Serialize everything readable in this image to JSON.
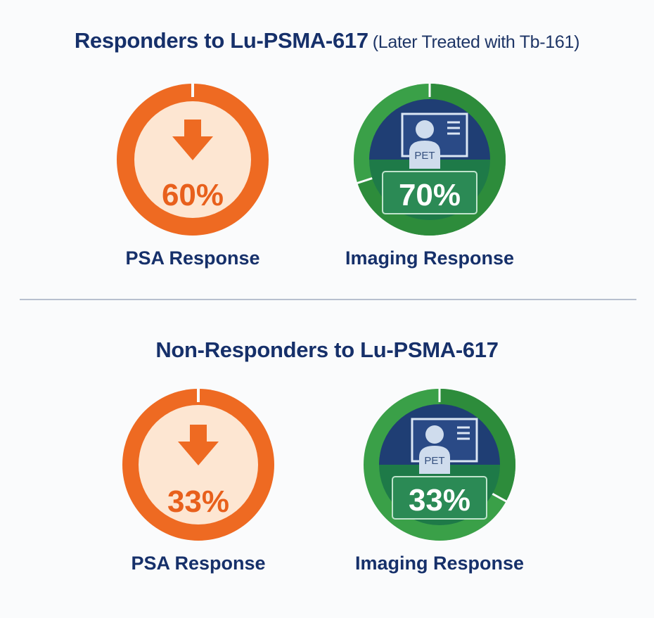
{
  "colors": {
    "orange": "#ee6a22",
    "orange_light": "#fde6d2",
    "green": "#3aa048",
    "green_dark": "#1f7a45",
    "navy": "#16306a"
  },
  "chart_data": [
    {
      "type": "pie",
      "title": "Responders to Lu-PSMA-617",
      "subtitle": "(Later Treated with Tb-161)",
      "metrics": [
        {
          "label": "PSA Response",
          "value": 60,
          "display": "60%",
          "icon": "down-arrow-icon"
        },
        {
          "label": "Imaging Response",
          "value": 70,
          "display": "70%",
          "icon": "pet-scan-icon",
          "icon_text": "PET"
        }
      ]
    },
    {
      "type": "pie",
      "title": "Non-Responders to Lu-PSMA-617",
      "metrics": [
        {
          "label": "PSA Response",
          "value": 33,
          "display": "33%",
          "icon": "down-arrow-icon"
        },
        {
          "label": "Imaging Response",
          "value": 33,
          "display": "33%",
          "icon": "pet-scan-icon",
          "icon_text": "PET"
        }
      ]
    }
  ]
}
